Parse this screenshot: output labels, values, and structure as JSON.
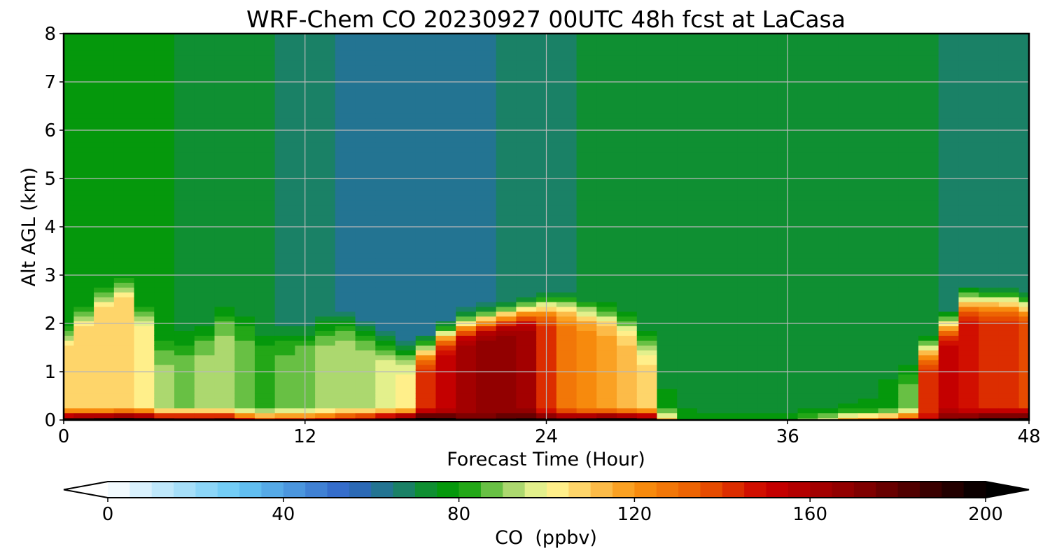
{
  "chart_data": {
    "type": "heatmap",
    "title": "WRF-Chem CO  20230927 00UTC 48h fcst at LaCasa",
    "xlabel": "Forecast Time (Hour)",
    "ylabel": "Alt AGL (km)",
    "xlim": [
      0,
      48
    ],
    "ylim": [
      0,
      8
    ],
    "xticks": [
      "0",
      "12",
      "24",
      "36",
      "48"
    ],
    "yticks": [
      "0",
      "1",
      "2",
      "3",
      "4",
      "5",
      "6",
      "7",
      "8"
    ],
    "grid": true,
    "x_hours": [
      0,
      1,
      2,
      3,
      4,
      5,
      6,
      7,
      8,
      9,
      10,
      11,
      12,
      13,
      14,
      15,
      16,
      17,
      18,
      19,
      20,
      21,
      22,
      23,
      24,
      25,
      26,
      27,
      28,
      29,
      30,
      31,
      32,
      33,
      34,
      35,
      36,
      37,
      38,
      39,
      40,
      41,
      42,
      43,
      44,
      45,
      46,
      47,
      48
    ],
    "y_km": [
      0,
      0.1,
      0.2,
      0.3,
      0.4,
      0.5,
      0.6,
      0.7,
      0.8,
      0.9,
      1.0,
      1.1,
      1.2,
      1.3,
      1.4,
      1.5,
      1.6,
      1.7,
      1.8,
      1.9,
      2.0,
      2.1,
      2.2,
      2.3,
      2.4,
      2.5,
      2.6,
      2.7,
      2.8,
      2.9,
      3.0,
      3.1,
      3.2,
      3.3,
      3.4,
      3.5,
      3.6,
      3.7,
      3.8,
      3.9,
      4.0,
      4.1,
      4.2,
      4.3,
      4.4,
      4.5,
      4.6,
      4.7,
      4.8,
      4.9,
      5.0,
      5.1,
      5.2,
      5.3,
      5.4,
      5.5,
      5.6,
      5.7,
      5.8,
      5.9,
      6.0,
      6.1,
      6.2,
      6.3,
      6.4,
      6.5,
      6.6,
      6.7,
      6.8,
      6.9,
      7.0,
      7.1,
      7.2,
      7.3,
      7.4,
      7.5,
      7.6,
      7.7,
      7.8,
      7.9,
      8.0
    ],
    "surface_co": [
      185,
      188,
      192,
      195,
      192,
      180,
      175,
      178,
      180,
      150,
      135,
      140,
      140,
      145,
      158,
      168,
      178,
      192,
      205,
      198,
      180,
      180,
      185,
      190,
      185,
      180,
      185,
      190,
      190,
      180,
      110,
      80,
      78,
      78,
      78,
      78,
      80,
      88,
      100,
      115,
      120,
      130,
      145,
      155,
      175,
      180,
      190,
      192,
      198
    ],
    "boundary_layer_co": [
      108,
      108,
      108,
      108,
      103,
      90,
      88,
      90,
      90,
      86,
      82,
      85,
      88,
      90,
      92,
      92,
      96,
      100,
      140,
      150,
      160,
      165,
      165,
      160,
      140,
      125,
      120,
      115,
      110,
      105,
      80,
      76,
      76,
      75,
      75,
      75,
      75,
      75,
      75,
      76,
      76,
      78,
      88,
      140,
      150,
      145,
      140,
      140,
      138
    ],
    "boundary_layer_top_km": [
      1.8,
      2.2,
      2.6,
      2.8,
      2.2,
      1.6,
      1.6,
      1.8,
      2.2,
      2.0,
      1.8,
      1.8,
      1.8,
      2.0,
      2.0,
      1.8,
      1.6,
      1.4,
      1.5,
      1.8,
      2.0,
      2.1,
      2.2,
      2.3,
      2.4,
      2.4,
      2.3,
      2.2,
      2.0,
      1.6,
      0.6,
      0.4,
      0.3,
      0.3,
      0.3,
      0.3,
      0.3,
      0.4,
      0.4,
      0.5,
      0.6,
      0.8,
      1.0,
      1.5,
      2.0,
      2.5,
      2.5,
      2.5,
      2.4
    ],
    "free_troposphere_co": [
      76,
      76,
      76,
      76,
      76,
      75,
      74,
      73,
      73,
      72,
      70,
      68,
      66,
      65,
      64,
      64,
      64,
      64,
      64,
      64,
      64,
      64,
      65,
      66,
      66,
      68,
      70,
      72,
      74,
      74,
      73,
      72,
      72,
      73,
      74,
      74,
      73,
      72,
      72,
      72,
      72,
      73,
      72,
      70,
      68,
      68,
      67,
      66,
      66
    ],
    "colorbar": {
      "label": "CO  (ppbv)",
      "vmin": 0,
      "vmax": 200,
      "step": 5,
      "extend": "both",
      "ticks": [
        "0",
        "40",
        "80",
        "120",
        "160",
        "200"
      ],
      "levels": [
        0,
        5,
        10,
        15,
        20,
        25,
        30,
        35,
        40,
        45,
        50,
        55,
        60,
        65,
        70,
        75,
        80,
        85,
        90,
        95,
        100,
        105,
        110,
        115,
        120,
        125,
        130,
        135,
        140,
        145,
        150,
        155,
        160,
        165,
        170,
        175,
        180,
        185,
        190,
        195,
        200
      ],
      "color_stops": [
        {
          "v": 0,
          "c": "#ffffff"
        },
        {
          "v": 30,
          "c": "#66c8f5"
        },
        {
          "v": 55,
          "c": "#2f63c6"
        },
        {
          "v": 65,
          "c": "#1f7a80"
        },
        {
          "v": 75,
          "c": "#0a9618"
        },
        {
          "v": 80,
          "c": "#009a00"
        },
        {
          "v": 92,
          "c": "#a6d66c"
        },
        {
          "v": 100,
          "c": "#fffc9a"
        },
        {
          "v": 110,
          "c": "#fdc85a"
        },
        {
          "v": 120,
          "c": "#f99410"
        },
        {
          "v": 135,
          "c": "#eb5a00"
        },
        {
          "v": 150,
          "c": "#cc0000"
        },
        {
          "v": 170,
          "c": "#8a0000"
        },
        {
          "v": 200,
          "c": "#000000"
        }
      ]
    }
  }
}
